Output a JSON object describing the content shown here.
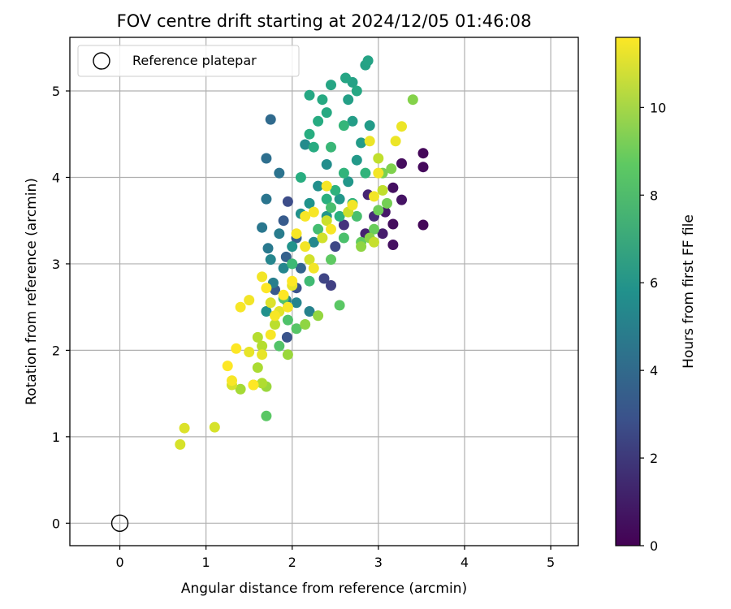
{
  "chart_data": {
    "type": "scatter",
    "title": "FOV centre drift starting at 2024/12/05 01:46:08",
    "xlabel": "Angular distance from reference (arcmin)",
    "ylabel": "Rotation from reference (arcmin)",
    "xlim": [
      -0.58,
      5.32
    ],
    "ylim": [
      -0.26,
      5.62
    ],
    "xticks": [
      0,
      1,
      2,
      3,
      4,
      5
    ],
    "yticks": [
      0,
      1,
      2,
      3,
      4,
      5
    ],
    "grid": true,
    "legend": {
      "placement": "top-left",
      "entries": [
        {
          "label": "Reference platepar",
          "marker": "open-circle"
        }
      ]
    },
    "reference_point": {
      "x": 0,
      "y": 0
    },
    "colorbar": {
      "label": "Hours from first FF file",
      "colormap": "viridis",
      "range": [
        0,
        11.6
      ],
      "ticks": [
        0,
        2,
        4,
        6,
        8,
        10
      ]
    },
    "series": [
      {
        "color_by": "hours_from_first_ff_file",
        "points": [
          [
            3.52,
            4.28,
            0.2
          ],
          [
            3.52,
            4.12,
            0.3
          ],
          [
            3.27,
            4.16,
            0.4
          ],
          [
            3.52,
            3.45,
            0.2
          ],
          [
            3.17,
            3.46,
            0.4
          ],
          [
            3.17,
            3.22,
            0.5
          ],
          [
            3.17,
            3.88,
            0.5
          ],
          [
            3.27,
            3.74,
            0.6
          ],
          [
            3.08,
            3.6,
            0.8
          ],
          [
            3.05,
            3.35,
            0.9
          ],
          [
            2.85,
            3.35,
            1.1
          ],
          [
            2.88,
            3.8,
            1.2
          ],
          [
            2.95,
            3.55,
            1.4
          ],
          [
            2.6,
            3.45,
            1.7
          ],
          [
            2.45,
            2.75,
            2.2
          ],
          [
            2.37,
            2.83,
            2.4
          ],
          [
            2.5,
            3.2,
            2.5
          ],
          [
            1.95,
            3.72,
            2.7
          ],
          [
            2.05,
            2.72,
            2.9
          ],
          [
            1.94,
            2.15,
            3.0
          ],
          [
            1.8,
            2.7,
            3.2
          ],
          [
            1.9,
            3.5,
            3.3
          ],
          [
            2.05,
            3.3,
            3.5
          ],
          [
            1.93,
            3.08,
            3.6
          ],
          [
            2.1,
            2.95,
            3.7
          ],
          [
            1.75,
            4.67,
            4.0
          ],
          [
            1.7,
            4.22,
            4.2
          ],
          [
            1.85,
            4.05,
            4.4
          ],
          [
            1.7,
            3.75,
            4.5
          ],
          [
            1.65,
            3.42,
            4.6
          ],
          [
            1.72,
            3.18,
            4.7
          ],
          [
            1.85,
            3.35,
            4.8
          ],
          [
            1.78,
            2.78,
            4.9
          ],
          [
            1.93,
            2.58,
            5.0
          ],
          [
            2.2,
            2.45,
            5.1
          ],
          [
            2.05,
            2.55,
            5.2
          ],
          [
            1.9,
            2.95,
            5.3
          ],
          [
            1.75,
            3.05,
            5.3
          ],
          [
            2.25,
            3.25,
            5.4
          ],
          [
            2.15,
            4.38,
            5.5
          ],
          [
            2.4,
            4.15,
            5.6
          ],
          [
            2.3,
            3.9,
            5.7
          ],
          [
            2.1,
            3.58,
            5.8
          ],
          [
            2.0,
            3.2,
            5.9
          ],
          [
            1.7,
            2.45,
            5.8
          ],
          [
            2.2,
            3.7,
            5.9
          ],
          [
            2.4,
            3.55,
            6.0
          ],
          [
            2.55,
            3.75,
            6.1
          ],
          [
            2.65,
            3.95,
            6.1
          ],
          [
            2.75,
            4.2,
            6.2
          ],
          [
            2.8,
            4.4,
            6.3
          ],
          [
            2.9,
            4.6,
            6.3
          ],
          [
            2.7,
            4.65,
            6.4
          ],
          [
            2.65,
            4.9,
            6.5
          ],
          [
            2.7,
            5.1,
            6.6
          ],
          [
            2.85,
            5.3,
            6.6
          ],
          [
            2.88,
            5.35,
            6.7
          ],
          [
            2.62,
            5.15,
            6.8
          ],
          [
            2.75,
            5.0,
            6.9
          ],
          [
            2.45,
            5.07,
            6.8
          ],
          [
            2.2,
            4.95,
            6.9
          ],
          [
            2.35,
            4.9,
            7.0
          ],
          [
            2.4,
            4.75,
            7.0
          ],
          [
            2.3,
            4.65,
            7.1
          ],
          [
            2.2,
            4.5,
            7.2
          ],
          [
            2.25,
            4.35,
            7.1
          ],
          [
            2.1,
            4.0,
            7.2
          ],
          [
            2.4,
            3.75,
            7.3
          ],
          [
            2.55,
            3.55,
            7.3
          ],
          [
            2.7,
            3.7,
            7.4
          ],
          [
            2.5,
            3.85,
            7.4
          ],
          [
            2.6,
            4.05,
            7.5
          ],
          [
            2.85,
            4.05,
            7.5
          ],
          [
            2.6,
            4.6,
            7.6
          ],
          [
            2.45,
            4.35,
            7.7
          ],
          [
            2.0,
            3.0,
            7.8
          ],
          [
            2.2,
            2.8,
            7.9
          ],
          [
            2.3,
            3.4,
            8.0
          ],
          [
            2.45,
            3.65,
            8.1
          ],
          [
            2.75,
            3.55,
            8.1
          ],
          [
            2.6,
            3.3,
            8.2
          ],
          [
            1.95,
            2.35,
            8.3
          ],
          [
            1.85,
            2.05,
            8.4
          ],
          [
            1.9,
            2.6,
            8.4
          ],
          [
            2.05,
            2.25,
            8.5
          ],
          [
            1.7,
            1.24,
            8.6
          ],
          [
            2.55,
            2.52,
            8.6
          ],
          [
            2.45,
            3.05,
            8.7
          ],
          [
            2.8,
            3.25,
            8.8
          ],
          [
            2.95,
            3.4,
            8.9
          ],
          [
            3.0,
            3.62,
            9.0
          ],
          [
            3.1,
            3.7,
            9.1
          ],
          [
            3.05,
            4.05,
            9.2
          ],
          [
            3.15,
            4.1,
            9.3
          ],
          [
            3.4,
            4.9,
            9.4
          ],
          [
            2.9,
            3.3,
            9.5
          ],
          [
            2.8,
            3.2,
            9.6
          ],
          [
            2.15,
            2.3,
            9.6
          ],
          [
            2.3,
            2.4,
            9.7
          ],
          [
            1.95,
            1.95,
            9.8
          ],
          [
            1.7,
            1.58,
            9.8
          ],
          [
            1.55,
            1.6,
            9.9
          ],
          [
            1.4,
            1.55,
            10.0
          ],
          [
            1.6,
            1.8,
            10.1
          ],
          [
            1.65,
            1.62,
            10.2
          ],
          [
            1.65,
            2.05,
            10.3
          ],
          [
            1.6,
            2.15,
            10.3
          ],
          [
            1.8,
            2.3,
            10.4
          ],
          [
            3.0,
            4.22,
            10.5
          ],
          [
            3.05,
            3.85,
            10.5
          ],
          [
            2.95,
            3.25,
            10.6
          ],
          [
            2.65,
            3.6,
            10.7
          ],
          [
            2.4,
            3.5,
            10.7
          ],
          [
            2.35,
            3.3,
            10.8
          ],
          [
            2.2,
            3.05,
            10.8
          ],
          [
            1.3,
            1.6,
            10.9
          ],
          [
            1.1,
            1.11,
            10.9
          ],
          [
            0.7,
            0.91,
            10.9
          ],
          [
            0.75,
            1.1,
            11.0
          ],
          [
            1.75,
            2.55,
            11.0
          ],
          [
            1.85,
            2.45,
            11.1
          ],
          [
            1.65,
            1.95,
            11.2
          ],
          [
            1.5,
            1.98,
            11.2
          ],
          [
            2.0,
            2.75,
            11.2
          ],
          [
            3.2,
            4.42,
            11.3
          ],
          [
            3.27,
            4.59,
            11.3
          ],
          [
            2.9,
            4.42,
            11.3
          ],
          [
            3.0,
            4.05,
            11.4
          ],
          [
            2.95,
            3.78,
            11.4
          ],
          [
            2.7,
            3.68,
            11.4
          ],
          [
            2.4,
            3.9,
            11.5
          ],
          [
            2.15,
            3.55,
            11.5
          ],
          [
            2.05,
            3.35,
            11.5
          ],
          [
            2.25,
            3.6,
            11.5
          ],
          [
            1.25,
            1.82,
            11.6
          ],
          [
            1.35,
            2.02,
            11.6
          ],
          [
            1.4,
            2.5,
            11.5
          ],
          [
            1.5,
            2.58,
            11.4
          ],
          [
            1.8,
            2.4,
            11.5
          ],
          [
            1.9,
            2.64,
            11.6
          ],
          [
            1.7,
            2.72,
            11.6
          ],
          [
            1.75,
            2.18,
            11.5
          ],
          [
            1.65,
            2.85,
            11.4
          ],
          [
            1.55,
            1.6,
            11.6
          ],
          [
            1.3,
            1.65,
            11.5
          ],
          [
            2.25,
            2.95,
            11.4
          ],
          [
            2.45,
            3.4,
            11.5
          ],
          [
            2.0,
            2.8,
            11.6
          ],
          [
            1.95,
            2.5,
            11.5
          ],
          [
            2.15,
            3.2,
            11.4
          ]
        ]
      }
    ]
  }
}
